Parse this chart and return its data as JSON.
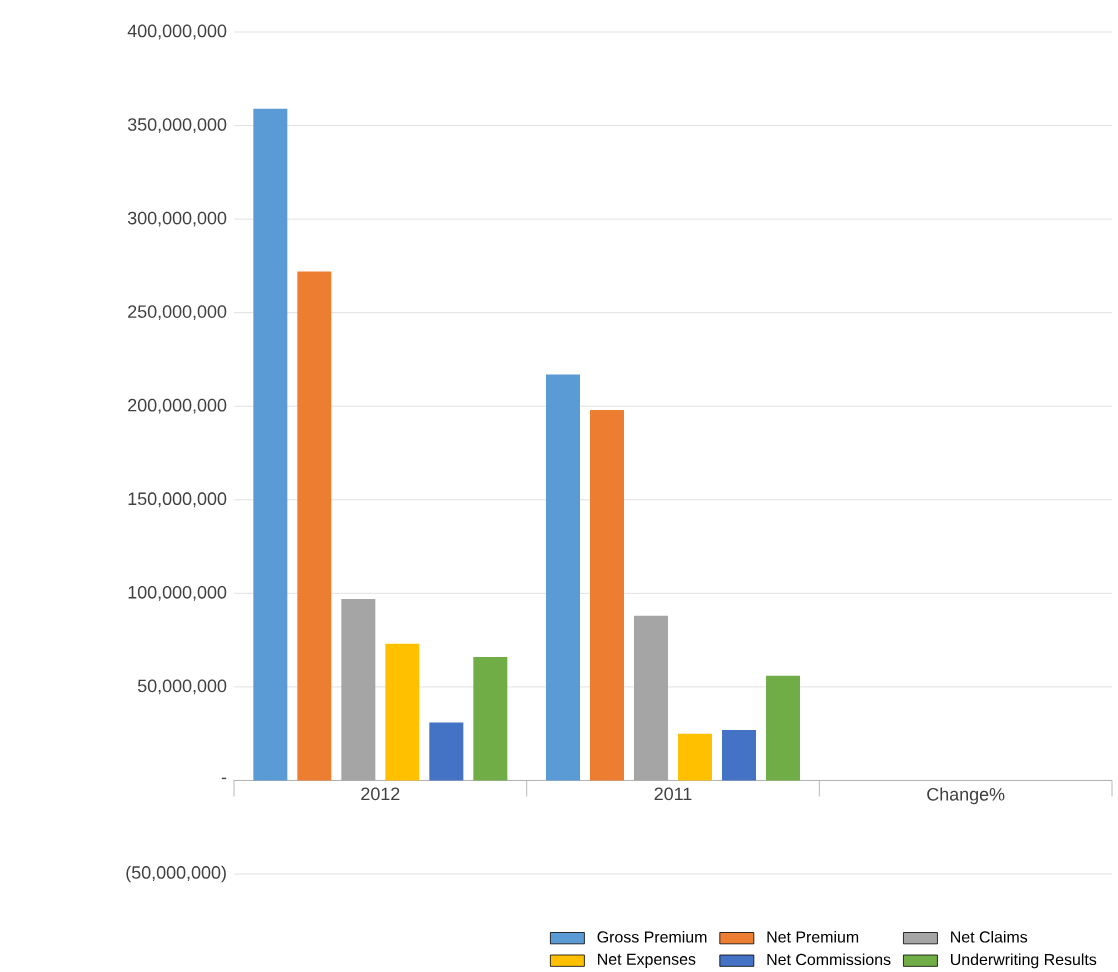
{
  "chart_data": {
    "type": "bar",
    "categories": [
      "2012",
      "2011",
      "Change%"
    ],
    "series": [
      {
        "name": "Gross Premium",
        "color": "#5b9bd5",
        "values": [
          359000000,
          217000000,
          0
        ]
      },
      {
        "name": "Net Premium",
        "color": "#ed7d31",
        "values": [
          272000000,
          198000000,
          0
        ]
      },
      {
        "name": "Net Claims",
        "color": "#a5a5a5",
        "values": [
          97000000,
          88000000,
          0
        ]
      },
      {
        "name": "Net Expenses",
        "color": "#ffc000",
        "values": [
          73000000,
          25000000,
          0
        ]
      },
      {
        "name": "Net Commissions",
        "color": "#4472c4",
        "values": [
          31000000,
          27000000,
          0
        ]
      },
      {
        "name": "Underwriting Results",
        "color": "#70ad47",
        "values": [
          66000000,
          56000000,
          0
        ]
      }
    ],
    "ylim": [
      -50000000,
      400000000
    ],
    "yticks": [
      {
        "value": -50000000,
        "label": "(50,000,000)"
      },
      {
        "value": 0,
        "label": "-"
      },
      {
        "value": 50000000,
        "label": "50,000,000"
      },
      {
        "value": 100000000,
        "label": "100,000,000"
      },
      {
        "value": 150000000,
        "label": "150,000,000"
      },
      {
        "value": 200000000,
        "label": "200,000,000"
      },
      {
        "value": 250000000,
        "label": "250,000,000"
      },
      {
        "value": 300000000,
        "label": "300,000,000"
      },
      {
        "value": 350000000,
        "label": "350,000,000"
      },
      {
        "value": 400000000,
        "label": "400,000,000"
      }
    ],
    "grid": "y",
    "legend": "bottom right"
  }
}
